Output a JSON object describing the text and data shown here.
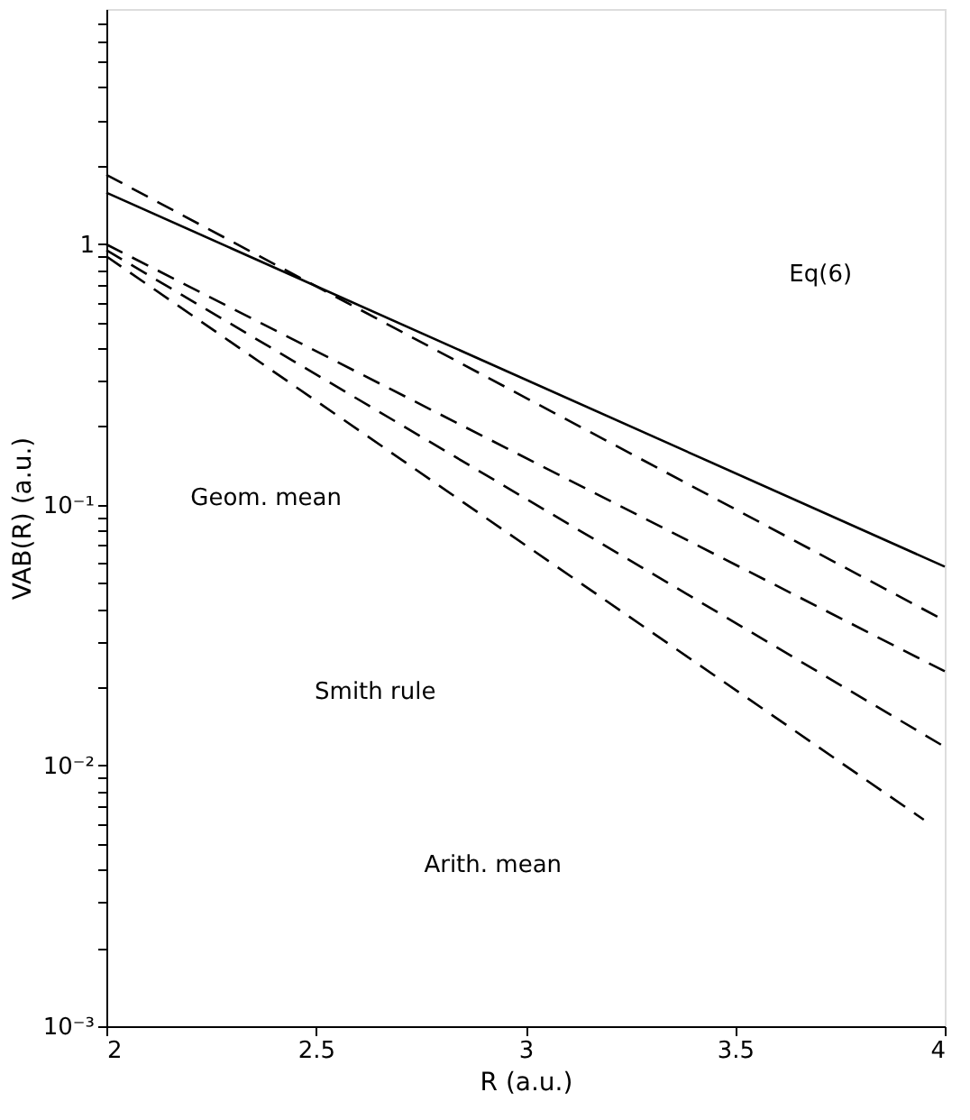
{
  "chart_data": {
    "type": "line",
    "xlabel": "R (a.u.)",
    "ylabel": "VAB(R)  (a.u.)",
    "log": "y",
    "xlim": [
      2,
      4
    ],
    "xticks": [
      2,
      2.5,
      3,
      3.5,
      4
    ],
    "ylim": [
      0.001,
      8
    ],
    "yticks": [
      {
        "value": 0.001,
        "label": "10⁻³"
      },
      {
        "value": 0.002,
        "label": null
      },
      {
        "value": 0.003,
        "label": null
      },
      {
        "value": 0.004,
        "label": null
      },
      {
        "value": 0.005,
        "label": null
      },
      {
        "value": 0.006,
        "label": null
      },
      {
        "value": 0.007,
        "label": null
      },
      {
        "value": 0.008,
        "label": null
      },
      {
        "value": 0.009,
        "label": null
      },
      {
        "value": 0.01,
        "label": "10⁻²"
      },
      {
        "value": 0.02,
        "label": null
      },
      {
        "value": 0.03,
        "label": null
      },
      {
        "value": 0.04,
        "label": null
      },
      {
        "value": 0.05,
        "label": null
      },
      {
        "value": 0.06,
        "label": null
      },
      {
        "value": 0.07,
        "label": null
      },
      {
        "value": 0.08,
        "label": null
      },
      {
        "value": 0.09,
        "label": null
      },
      {
        "value": 0.1,
        "label": "10⁻¹"
      },
      {
        "value": 0.2,
        "label": null
      },
      {
        "value": 0.3,
        "label": null
      },
      {
        "value": 0.4,
        "label": null
      },
      {
        "value": 0.5,
        "label": null
      },
      {
        "value": 0.6,
        "label": null
      },
      {
        "value": 0.7,
        "label": null
      },
      {
        "value": 0.8,
        "label": null
      },
      {
        "value": 0.9,
        "label": null
      },
      {
        "value": 1,
        "label": "1"
      },
      {
        "value": 2,
        "label": null
      },
      {
        "value": 3,
        "label": null
      },
      {
        "value": 4,
        "label": null
      },
      {
        "value": 5,
        "label": null
      },
      {
        "value": 6,
        "label": null
      },
      {
        "value": 7,
        "label": null
      }
    ],
    "grid": false,
    "marker": "none",
    "series": [
      {
        "color": "#000000",
        "line_style": "solid",
        "x": [
          2,
          4
        ],
        "values": [
          1.58,
          0.058
        ]
      },
      {
        "color": "#000000",
        "line_style": "dashed",
        "x": [
          2,
          4
        ],
        "values": [
          1.85,
          0.036
        ]
      },
      {
        "color": "#000000",
        "line_style": "dashed",
        "x": [
          2,
          4
        ],
        "values": [
          1.0,
          0.023
        ]
      },
      {
        "color": "#000000",
        "line_style": "dashed",
        "x": [
          2,
          4
        ],
        "values": [
          0.95,
          0.0118
        ]
      },
      {
        "color": "#000000",
        "line_style": "dashed",
        "x": [
          2,
          3.95
        ],
        "values": [
          0.9,
          0.0062
        ]
      }
    ],
    "annotations": [
      "Eq(6)",
      "Geom. mean",
      "Smith rule",
      "Arith. mean"
    ]
  }
}
